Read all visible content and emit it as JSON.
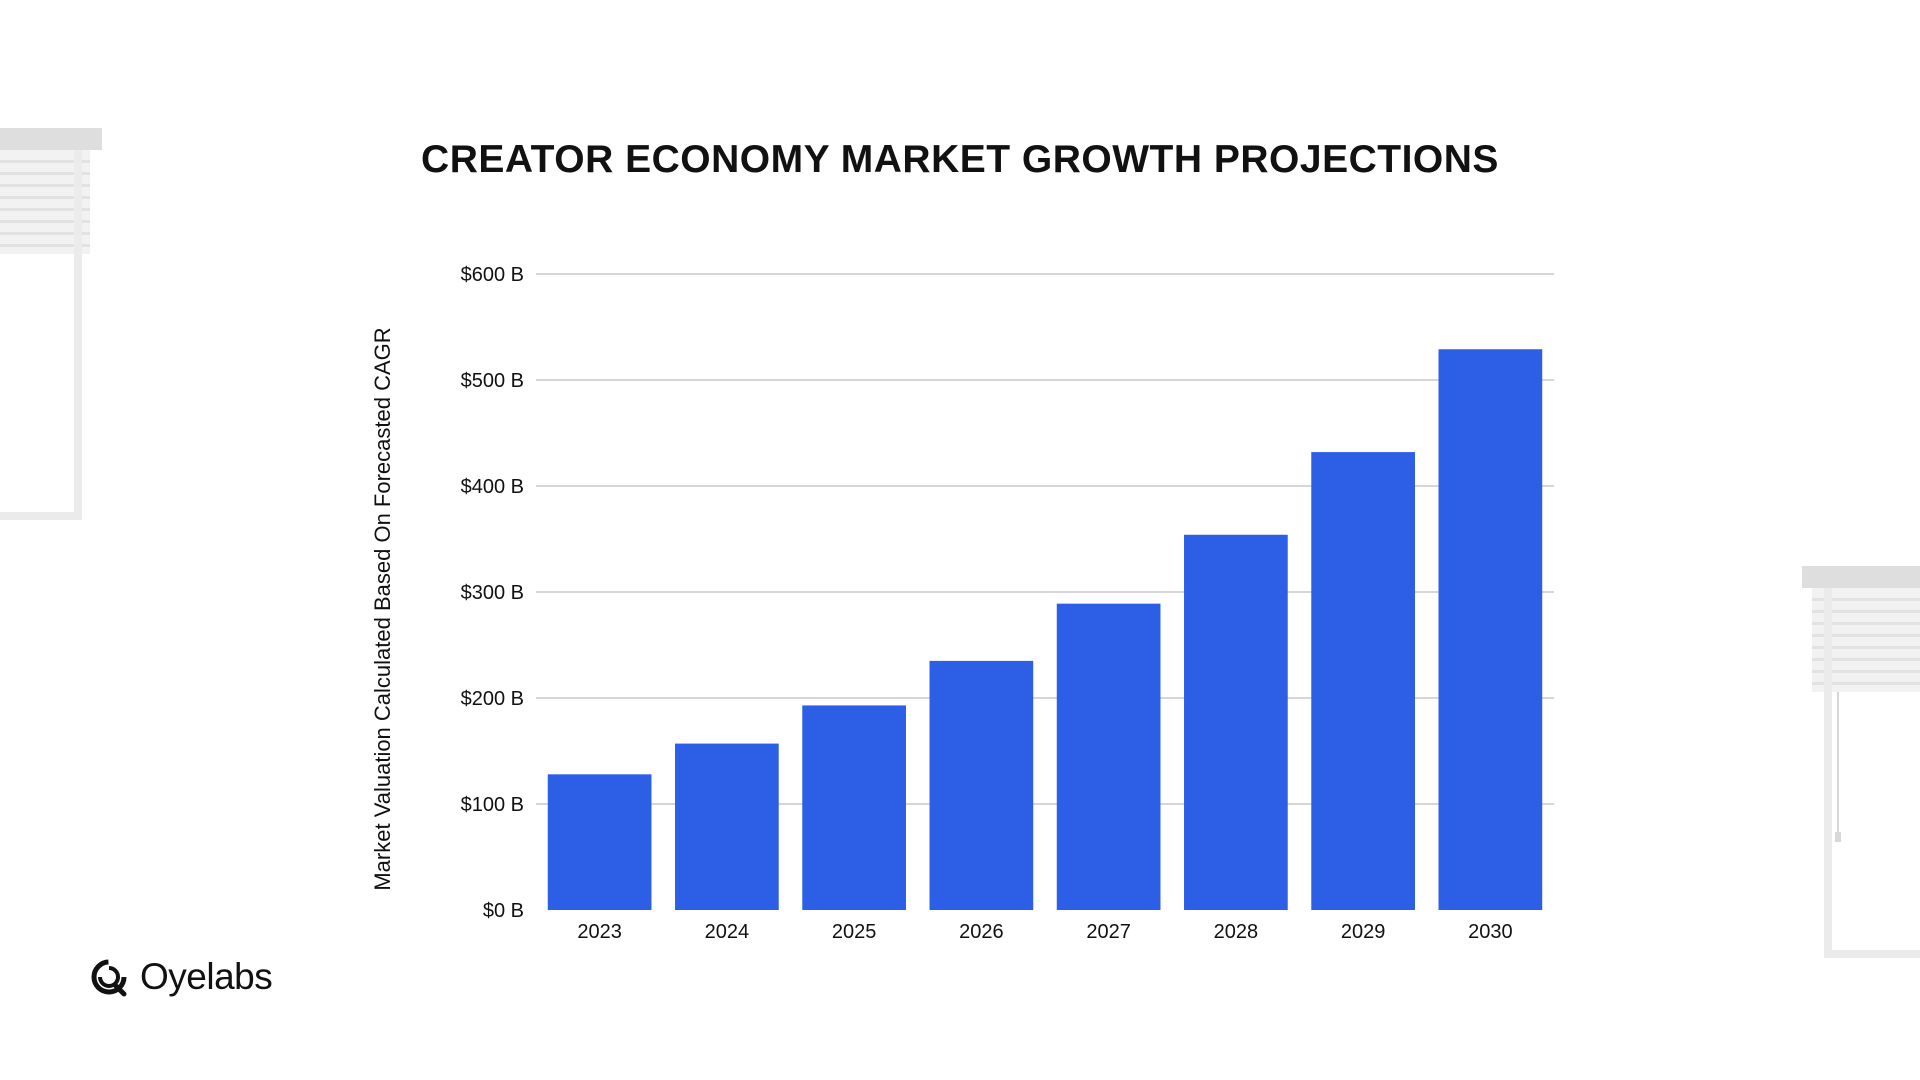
{
  "brand": {
    "name": "Oyelabs",
    "logo_icon": "oyelabs-logo-icon"
  },
  "colors": {
    "bar": "#2D5EE6",
    "grid": "#bdbdbd",
    "text": "#111111",
    "decor": "#e6e6e6"
  },
  "chart_data": {
    "type": "bar",
    "title": "CREATOR ECONOMY MARKET GROWTH PROJECTIONS",
    "xlabel": "",
    "ylabel": "Market Valuation Calculated Based On Forecasted CAGR",
    "categories": [
      "2023",
      "2024",
      "2025",
      "2026",
      "2027",
      "2028",
      "2029",
      "2030"
    ],
    "values": [
      128,
      157,
      193,
      235,
      289,
      354,
      432,
      529
    ],
    "ylim": [
      0,
      600
    ],
    "yticks": [
      0,
      100,
      200,
      300,
      400,
      500,
      600
    ],
    "ytick_labels": [
      "$0 B",
      "$100 B",
      "$200 B",
      "$300 B",
      "$400 B",
      "$500 B",
      "$600 B"
    ],
    "grid": true,
    "legend": "none"
  }
}
